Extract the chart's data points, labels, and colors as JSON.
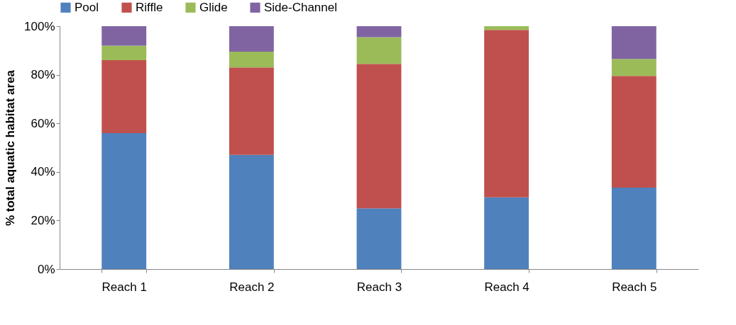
{
  "chart_data": {
    "type": "bar",
    "stacked": true,
    "ylabel": "% total aquatic habitat area",
    "categories": [
      "Reach 1",
      "Reach 2",
      "Reach 3",
      "Reach 4",
      "Reach 5"
    ],
    "series": [
      {
        "name": "Pool",
        "color": "#4f81bd",
        "values": [
          56,
          47,
          25,
          29.5,
          33.5
        ]
      },
      {
        "name": "Riffle",
        "color": "#c0504d",
        "values": [
          30,
          36,
          59.5,
          69,
          46
        ]
      },
      {
        "name": "Glide",
        "color": "#9bbb59",
        "values": [
          6,
          6.5,
          11,
          1.5,
          7
        ]
      },
      {
        "name": "Side-Channel",
        "color": "#8064a2",
        "values": [
          8,
          10.5,
          4.5,
          0,
          13.5
        ]
      }
    ],
    "ylim": [
      0,
      100
    ],
    "yticks": [
      {
        "value": 0,
        "label": "0%"
      },
      {
        "value": 20,
        "label": "20%"
      },
      {
        "value": 40,
        "label": "40%"
      },
      {
        "value": 60,
        "label": "60%"
      },
      {
        "value": 80,
        "label": "80%"
      },
      {
        "value": 100,
        "label": "100%"
      }
    ],
    "grid": false,
    "legend": "top"
  }
}
